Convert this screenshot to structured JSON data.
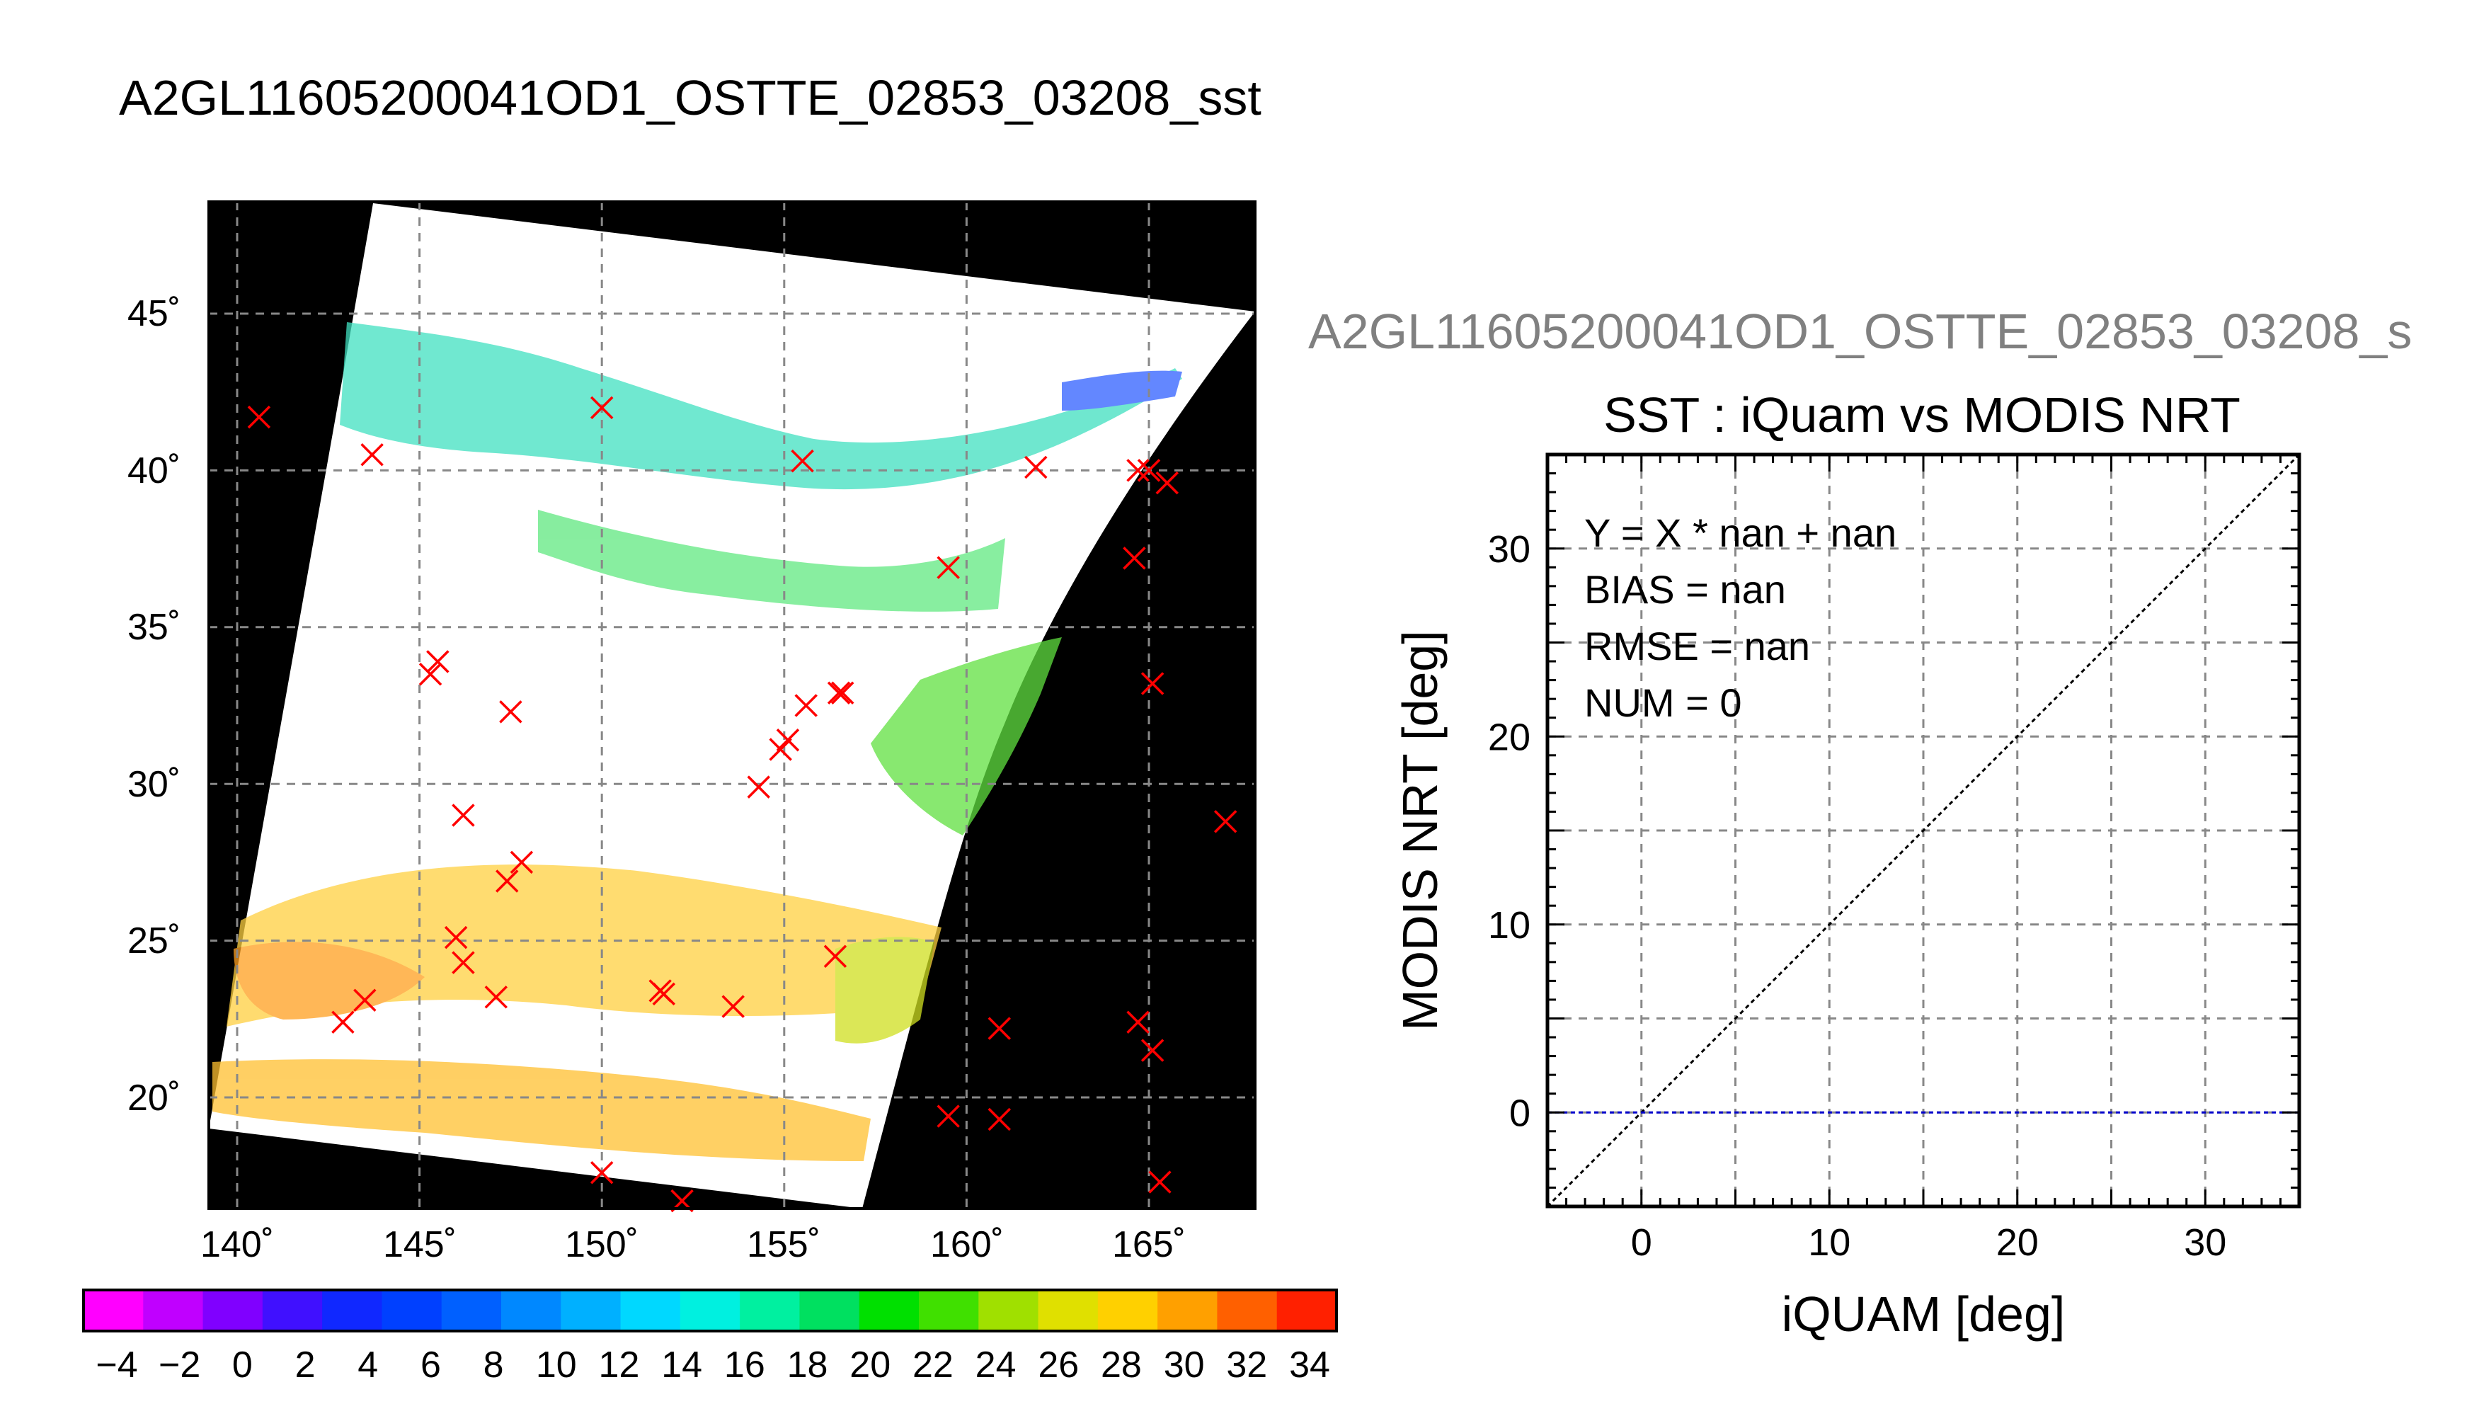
{
  "page": {
    "main_title": "A2GL11605200041OD1_OSTTE_02853_03208_sst",
    "right_title": "A2GL11605200041OD1_OSTTE_02853_03208_s"
  },
  "map_panel": {
    "lon_ticks": [
      140,
      145,
      150,
      155,
      160,
      165
    ],
    "lon_tick_labels": [
      "140˚",
      "145˚",
      "150˚",
      "155˚",
      "160˚",
      "165˚"
    ],
    "lat_ticks": [
      45,
      40,
      35,
      30,
      25,
      20
    ],
    "lat_tick_labels": [
      "45˚",
      "40˚",
      "35˚",
      "30˚",
      "25˚",
      "20˚"
    ],
    "marker_color": "#ff0000",
    "background_color": "#000000",
    "swath_color": "#ffffff"
  },
  "colorbar": {
    "tick_labels": [
      "−4",
      "−2",
      "0",
      "2",
      "4",
      "6",
      "8",
      "10",
      "12",
      "14",
      "16",
      "18",
      "20",
      "22",
      "24",
      "26",
      "28",
      "30",
      "32",
      "34"
    ],
    "colors": [
      "#ff00ff",
      "#c000ff",
      "#8000ff",
      "#4010ff",
      "#1028ff",
      "#0040ff",
      "#0060ff",
      "#0088ff",
      "#00b0ff",
      "#00d8ff",
      "#00f0e0",
      "#00f0a0",
      "#00e060",
      "#00e000",
      "#40e000",
      "#a0e000",
      "#e0e000",
      "#ffd000",
      "#ffa000",
      "#ff6000",
      "#ff2000"
    ]
  },
  "chart_data": {
    "type": "scatter",
    "title": "SST : iQuam vs MODIS NRT",
    "xlabel": "iQUAM [deg]",
    "ylabel": "MODIS NRT [deg]",
    "xlim": [
      -5,
      35
    ],
    "ylim": [
      -5,
      35
    ],
    "x_ticks": [
      0,
      10,
      20,
      30
    ],
    "y_ticks": [
      0,
      10,
      20,
      30
    ],
    "grid": true,
    "stats": [
      "Y = X * nan + nan",
      "BIAS = nan",
      "RMSE = nan",
      "NUM = 0"
    ],
    "series": [],
    "reference_lines": [
      {
        "kind": "one-to-one",
        "color": "#000000"
      },
      {
        "kind": "horizontal",
        "y": 0,
        "color": "#0000cc"
      }
    ]
  }
}
